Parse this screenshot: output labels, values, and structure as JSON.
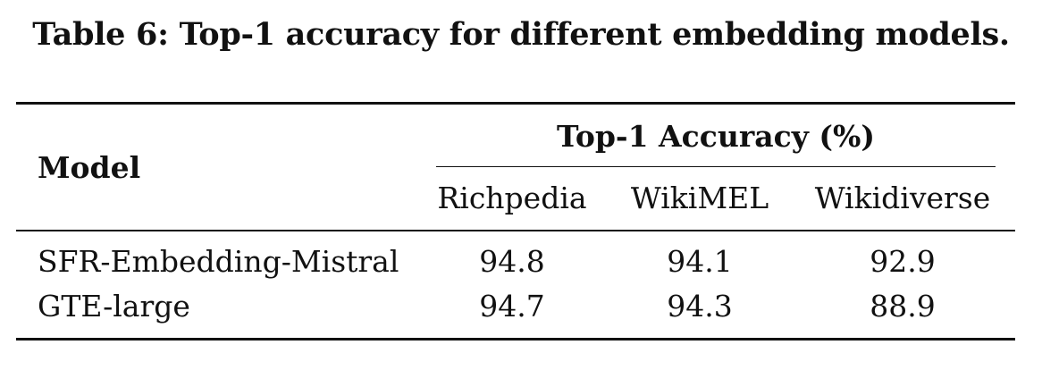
{
  "caption": "Table 6: Top-1 accuracy for different embedding models.",
  "table": {
    "row_header": "Model",
    "group_header": "Top-1 Accuracy (%)",
    "columns": [
      "Richpedia",
      "WikiMEL",
      "Wikidiverse"
    ],
    "rows": [
      {
        "model": "SFR-Embedding-Mistral",
        "values": [
          "94.8",
          "94.1",
          "92.9"
        ]
      },
      {
        "model": "GTE-large",
        "values": [
          "94.7",
          "94.3",
          "88.9"
        ]
      }
    ]
  }
}
